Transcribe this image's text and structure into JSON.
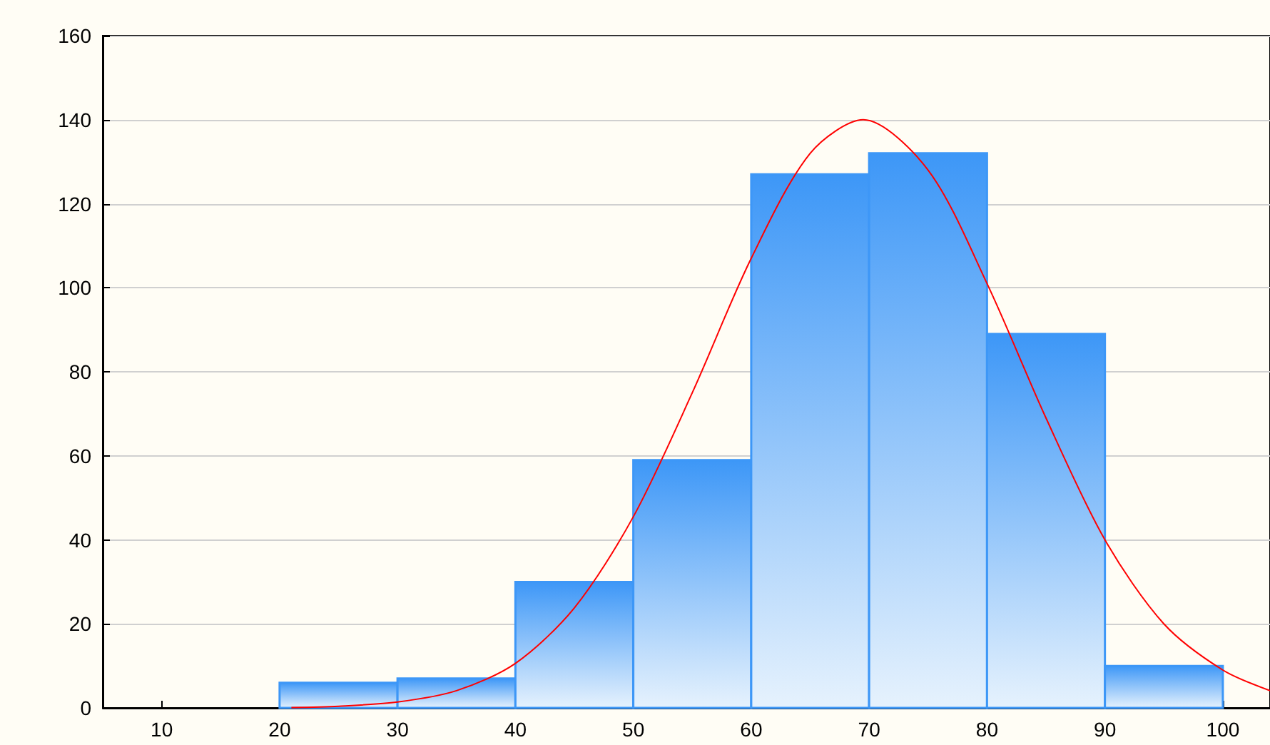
{
  "chart_data": {
    "type": "histogram",
    "bins": [
      20,
      30,
      40,
      50,
      60,
      70,
      80,
      90,
      100
    ],
    "values": [
      6,
      7,
      30,
      59,
      127,
      132,
      89,
      10
    ],
    "color": "#3d97f7",
    "series": [
      {
        "type": "line",
        "color": "#ff0000",
        "x": [
          21,
          25,
          30,
          35,
          40,
          45,
          50,
          55,
          60,
          65,
          69.5,
          75,
          80,
          85,
          90,
          95,
          100,
          104
        ],
        "values": [
          0.1,
          0.4,
          1.4,
          4.1,
          10.6,
          23.8,
          45.5,
          75,
          107,
          132,
          140,
          128,
          101,
          69,
          40,
          20,
          9,
          4.1
        ]
      }
    ],
    "xlim": [
      5,
      104
    ],
    "xticks": [
      10,
      20,
      30,
      40,
      50,
      60,
      70,
      80,
      90,
      100
    ],
    "ylim": [
      0,
      160
    ],
    "yticks": [
      0,
      20,
      40,
      60,
      80,
      100,
      120,
      140,
      160
    ],
    "grid": "y",
    "marker": "none",
    "line_style": "solid"
  }
}
